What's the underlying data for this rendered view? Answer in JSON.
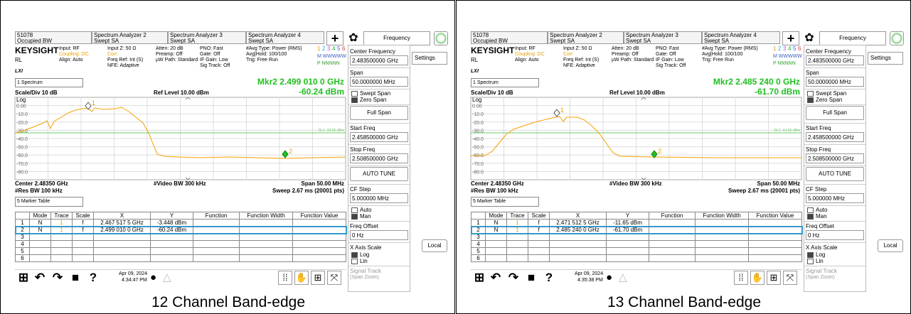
{
  "panels": [
    {
      "tabs": [
        {
          "line1": "51078",
          "line2": "Occupied BW"
        },
        {
          "line1": "Spectrum Analyzer 2",
          "line2": "Swept SA"
        },
        {
          "line1": "Spectrum Analyzer 3",
          "line2": "Swept SA"
        },
        {
          "line1": "Spectrum Analyzer 4",
          "line2": "Swept SA"
        }
      ],
      "menu_title": "Frequency",
      "brand": "KEYSIGHT",
      "rl": "RL",
      "lxi": "LXI",
      "info": [
        [
          "Input: RF",
          "Coupling: DC",
          "Align: Auto"
        ],
        [
          "Input Z: 50 Ω",
          "Corr",
          "Freq Ref: Int (S)",
          "NFE: Adaptive"
        ],
        [
          "Atten: 20 dB",
          "Preamp: Off",
          "µW Path: Standard"
        ],
        [
          "PNO: Fast",
          "Gate: Off",
          "IF Gain: Low",
          "Sig Track: Off"
        ],
        [
          "#Avg Type: Power (RMS)",
          "Avg|Hold: 100/100",
          "Trig: Free Run"
        ]
      ],
      "traces": [
        "1",
        "2",
        "3",
        "4",
        "5",
        "6"
      ],
      "trace_rows": [
        "M WWWWW",
        "P NNNNN"
      ],
      "window": "1 Spectrum",
      "marker": "Mkr2  2.499 010 0 GHz",
      "marker_level": "-60.24 dBm",
      "scale": "Scale/Div 10 dB",
      "ref": "Ref Level 10.00 dBm",
      "log": "Log",
      "yticks": [
        "0.00",
        "-10.0",
        "-20.0",
        "-30.0",
        "-40.0",
        "-50.0",
        "-60.0",
        "-70.0",
        "-80.0"
      ],
      "dl": "DL1 -33.65 dBm",
      "marker_labels": [
        "1",
        "2"
      ],
      "center": "Center 2.48350 GHz",
      "res_bw": "#Res BW 100 kHz",
      "vbw": "#Video BW 300 kHz",
      "span": "Span 50.00 MHz",
      "sweep": "Sweep 2.67 ms (20001 pts)",
      "table_window": "5 Marker Table",
      "table": {
        "headers": [
          "Mode",
          "Trace",
          "Scale",
          "X",
          "Y",
          "Function",
          "Function Width",
          "Function Value"
        ],
        "rows": [
          {
            "n": "1",
            "mode": "N",
            "trace": "1",
            "scale": "f",
            "x": "2.467 517 5 GHz",
            "y": "-3.448 dBm"
          },
          {
            "n": "2",
            "mode": "N",
            "trace": "1",
            "scale": "f",
            "x": "2.499 010 0 GHz",
            "y": "-60.24 dBm"
          },
          {
            "n": "3"
          },
          {
            "n": "4"
          },
          {
            "n": "5"
          },
          {
            "n": "6"
          }
        ]
      },
      "date": "Apr 09, 2024",
      "time": "4:34:47 PM",
      "side": [
        {
          "label": "Center Frequency",
          "value": "2.483500000 GHz"
        },
        {
          "label": "Span",
          "value": "50.0000000 MHz"
        },
        {
          "options": [
            "Swept Span",
            "Zero Span"
          ],
          "selected": 1
        },
        {
          "button": "Full Span"
        },
        {
          "label": "Start Freq",
          "value": "2.458500000 GHz"
        },
        {
          "label": "Stop Freq",
          "value": "2.508500000 GHz"
        },
        {
          "button": "AUTO TUNE"
        },
        {
          "label": "CF Step",
          "value": "5.000000 MHz"
        },
        {
          "options": [
            "Auto",
            "Man"
          ],
          "selected": 1
        },
        {
          "label": "Freq Offset",
          "value": "0 Hz"
        },
        {
          "label": "X Axis Scale",
          "options": [
            "Log",
            "Lin"
          ],
          "selected": 0
        },
        {
          "label": "Signal Track",
          "sublabel": "(Span Zoom)"
        }
      ],
      "settings": "Settings",
      "local": "Local",
      "caption": "12 Channel Band-edge"
    },
    {
      "tabs": [
        {
          "line1": "51078",
          "line2": "Occupied BW"
        },
        {
          "line1": "Spectrum Analyzer 2",
          "line2": "Swept SA"
        },
        {
          "line1": "Spectrum Analyzer 3",
          "line2": "Swept SA"
        },
        {
          "line1": "Spectrum Analyzer 4",
          "line2": "Swept SA"
        }
      ],
      "menu_title": "Frequency",
      "brand": "KEYSIGHT",
      "rl": "RL",
      "lxi": "LXI",
      "info": [
        [
          "Input: RF",
          "Coupling: DC",
          "Align: Auto"
        ],
        [
          "Input Z: 50 Ω",
          "Corr",
          "Freq Ref: Int (S)",
          "NFE: Adaptive"
        ],
        [
          "Atten: 20 dB",
          "Preamp: Off",
          "µW Path: Standard"
        ],
        [
          "PNO: Fast",
          "Gate: Off",
          "IF Gain: Low",
          "Sig Track: Off"
        ],
        [
          "#Avg Type: Power (RMS)",
          "Avg|Hold: 100/100",
          "Trig: Free Run"
        ]
      ],
      "traces": [
        "1",
        "2",
        "3",
        "4",
        "5",
        "6"
      ],
      "trace_rows": [
        "M WWWWW",
        "P NNNNN"
      ],
      "window": "1 Spectrum",
      "marker": "Mkr2  2.485 240 0 GHz",
      "marker_level": "-61.70 dBm",
      "scale": "Scale/Div 10 dB",
      "ref": "Ref Level 10.00 dBm",
      "log": "Log",
      "yticks": [
        "0.00",
        "-10.0",
        "-20.0",
        "-30.0",
        "-40.0",
        "-50.0",
        "-60.0",
        "-70.0",
        "-80.0"
      ],
      "dl": "DL1 -41.65 dBm",
      "marker_labels": [
        "1",
        "2"
      ],
      "center": "Center 2.48350 GHz",
      "res_bw": "#Res BW 100 kHz",
      "vbw": "#Video BW 300 kHz",
      "span": "Span 50.00 MHz",
      "sweep": "Sweep 2.67 ms (20001 pts)",
      "table_window": "5 Marker Table",
      "table": {
        "headers": [
          "Mode",
          "Trace",
          "Scale",
          "X",
          "Y",
          "Function",
          "Function Width",
          "Function Value"
        ],
        "rows": [
          {
            "n": "1",
            "mode": "N",
            "trace": "1",
            "scale": "f",
            "x": "2.471 512 5 GHz",
            "y": "-11.65 dBm"
          },
          {
            "n": "2",
            "mode": "N",
            "trace": "1",
            "scale": "f",
            "x": "2.485 240 0 GHz",
            "y": "-61.70 dBm"
          },
          {
            "n": "3"
          },
          {
            "n": "4"
          },
          {
            "n": "5"
          },
          {
            "n": "6"
          }
        ]
      },
      "date": "Apr 09, 2024",
      "time": "4:35:38 PM",
      "side": [
        {
          "label": "Center Frequency",
          "value": "2.483500000 GHz"
        },
        {
          "label": "Span",
          "value": "50.0000000 MHz"
        },
        {
          "options": [
            "Swept Span",
            "Zero Span"
          ],
          "selected": 1
        },
        {
          "button": "Full Span"
        },
        {
          "label": "Start Freq",
          "value": "2.458500000 GHz"
        },
        {
          "label": "Stop Freq",
          "value": "2.508500000 GHz"
        },
        {
          "button": "AUTO TUNE"
        },
        {
          "label": "CF Step",
          "value": "5.000000 MHz"
        },
        {
          "options": [
            "Auto",
            "Man"
          ],
          "selected": 1
        },
        {
          "label": "Freq Offset",
          "value": "0 Hz"
        },
        {
          "label": "X Axis Scale",
          "options": [
            "Log",
            "Lin"
          ],
          "selected": 0
        },
        {
          "label": "Signal Track",
          "sublabel": "(Span Zoom)"
        }
      ],
      "settings": "Settings",
      "local": "Local",
      "caption": "13 Channel Band-edge"
    }
  ]
}
